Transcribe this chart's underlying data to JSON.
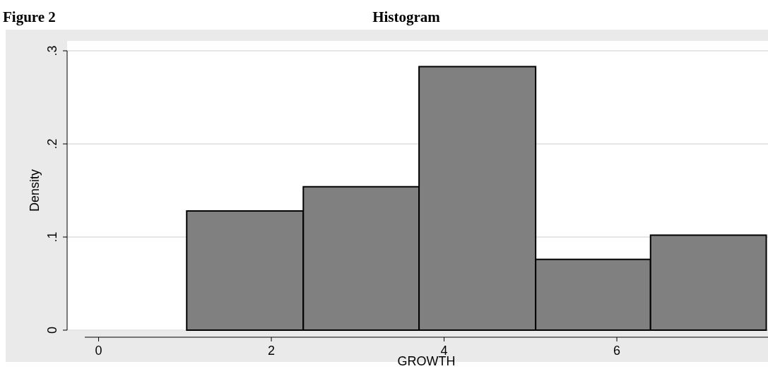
{
  "chart_data": {
    "type": "histogram",
    "title": "Histogram",
    "annotations": [
      "Figure 2"
    ],
    "xlabel": "GROWTH",
    "ylabel": "Density",
    "bins": [
      1.02,
      2.37,
      3.71,
      5.06,
      6.39,
      7.73
    ],
    "values": [
      0.128,
      0.154,
      0.283,
      0.076,
      0.102
    ],
    "color": "#808080",
    "xlim": [
      -0.16,
      7.75
    ],
    "ylim": [
      0,
      0.3
    ],
    "xticks": [
      0,
      2,
      4,
      6
    ],
    "yticks": [
      0,
      {
        "value": 0.1,
        "label": ".1"
      },
      {
        "value": 0.2,
        "label": ".2"
      },
      {
        "value": 0.3,
        "label": ".3"
      }
    ],
    "grid": "y"
  }
}
